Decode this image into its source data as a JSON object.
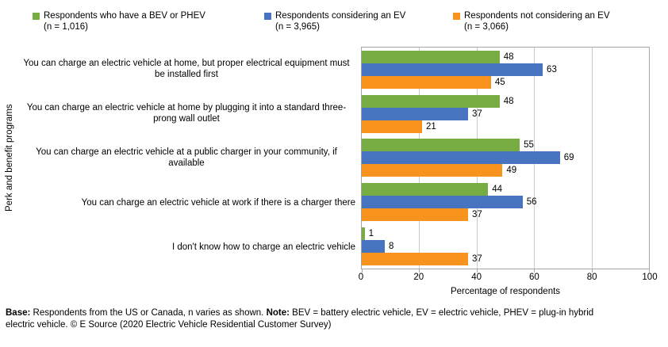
{
  "legend": {
    "items": [
      {
        "label": "Respondents who have a BEV or PHEV",
        "n_label": "(n = 1,016)",
        "color": "#77AC43"
      },
      {
        "label": "Respondents considering an EV",
        "n_label": "(n = 3,965)",
        "color": "#4674C1"
      },
      {
        "label": "Respondents not considering an EV",
        "n_label": "(n = 3,066)",
        "color": "#F8941D"
      }
    ]
  },
  "chart_data": {
    "type": "bar",
    "orientation": "horizontal",
    "title": "",
    "categories": [
      "You can charge an electric vehicle at home, but proper electrical equipment must be installed first",
      "You can charge an electric vehicle at home by plugging it into a standard three-prong wall outlet",
      "You can charge an electric vehicle at a public charger in your community, if available",
      "You can charge an electric vehicle at work if there is a charger there",
      "I don't know how to charge an electric vehicle"
    ],
    "series": [
      {
        "name": "Respondents who have a BEV or PHEV (n = 1,016)",
        "color": "#77AC43",
        "values": [
          48,
          48,
          55,
          44,
          1
        ]
      },
      {
        "name": "Respondents considering an EV (n = 3,965)",
        "color": "#4674C1",
        "values": [
          63,
          37,
          69,
          56,
          8
        ]
      },
      {
        "name": "Respondents not considering an EV (n = 3,066)",
        "color": "#F8941D",
        "values": [
          45,
          21,
          49,
          37,
          37
        ]
      }
    ],
    "xlabel": "Percentage of respondents",
    "ylabel": "Perk and benefit programs",
    "xlim": [
      0,
      100
    ],
    "xticks": [
      0,
      20,
      40,
      60,
      80,
      100
    ],
    "grid": true,
    "data_labels": true,
    "legend_position": "top"
  },
  "colors": {
    "gridline": "#c9c9c9",
    "axis_border": "#a6a6a6",
    "text": "#000000"
  },
  "footnote": {
    "lines": [
      [
        {
          "text": "Base:",
          "bold": true
        },
        {
          "text": " Respondents from the US or Canada, n varies as shown. ",
          "bold": false
        },
        {
          "text": "Note:",
          "bold": true
        },
        {
          "text": " BEV = battery electric vehicle, EV = electric vehicle, PHEV = plug-in hybrid",
          "bold": false
        }
      ],
      [
        {
          "text": "electric vehicle. © E Source (2020 Electric Vehicle Residential Customer Survey)",
          "bold": false
        }
      ]
    ]
  }
}
